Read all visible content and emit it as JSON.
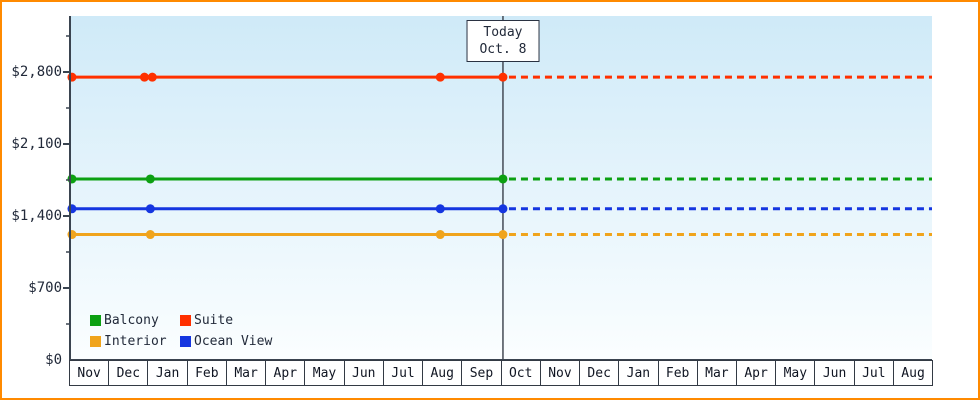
{
  "frame": {
    "border_color": "#ff8a00",
    "plot_background_top": "#cfeaf8",
    "plot_background_bottom": "#fbfeff",
    "axis_color": "#3a4450"
  },
  "chart_data": {
    "type": "line",
    "title": "",
    "xlabel": "",
    "ylabel": "",
    "ylim": [
      0,
      3350
    ],
    "grid": false,
    "legend_position": "bottom-left",
    "projection_style": "dashed-after-today",
    "y_ticks": [
      {
        "label": "$0",
        "value": 0
      },
      {
        "label": "$700",
        "value": 700
      },
      {
        "label": "$1,400",
        "value": 1400
      },
      {
        "label": "$2,100",
        "value": 2100
      },
      {
        "label": "$2,800",
        "value": 2800
      }
    ],
    "x_months": [
      "Nov",
      "Dec",
      "Jan",
      "Feb",
      "Mar",
      "Apr",
      "May",
      "Jun",
      "Jul",
      "Aug",
      "Sep",
      "Oct",
      "Nov",
      "Dec",
      "Jan",
      "Feb",
      "Mar",
      "Apr",
      "May",
      "Jun",
      "Jul",
      "Aug"
    ],
    "today": {
      "label_line1": "Today",
      "label_line2": "Oct. 8",
      "month_index": 11.05
    },
    "series": [
      {
        "name": "Suite",
        "color": "#ff3000",
        "value": 2750,
        "marker_months": [
          0.05,
          1.9,
          2.1,
          9.45,
          11.05
        ]
      },
      {
        "name": "Balcony",
        "color": "#0ca012",
        "value": 1760,
        "marker_months": [
          0.05,
          2.05,
          11.05
        ]
      },
      {
        "name": "Ocean View",
        "color": "#1536e0",
        "value": 1470,
        "marker_months": [
          0.05,
          2.05,
          9.45,
          11.05
        ]
      },
      {
        "name": "Interior",
        "color": "#f0a41c",
        "value": 1220,
        "marker_months": [
          0.05,
          2.05,
          9.45,
          11.05
        ]
      }
    ]
  },
  "legend": {
    "items": [
      {
        "label": "Balcony",
        "color": "#0ca012"
      },
      {
        "label": "Suite",
        "color": "#ff3000"
      },
      {
        "label": "Interior",
        "color": "#f0a41c"
      },
      {
        "label": "Ocean View",
        "color": "#1536e0"
      }
    ]
  }
}
